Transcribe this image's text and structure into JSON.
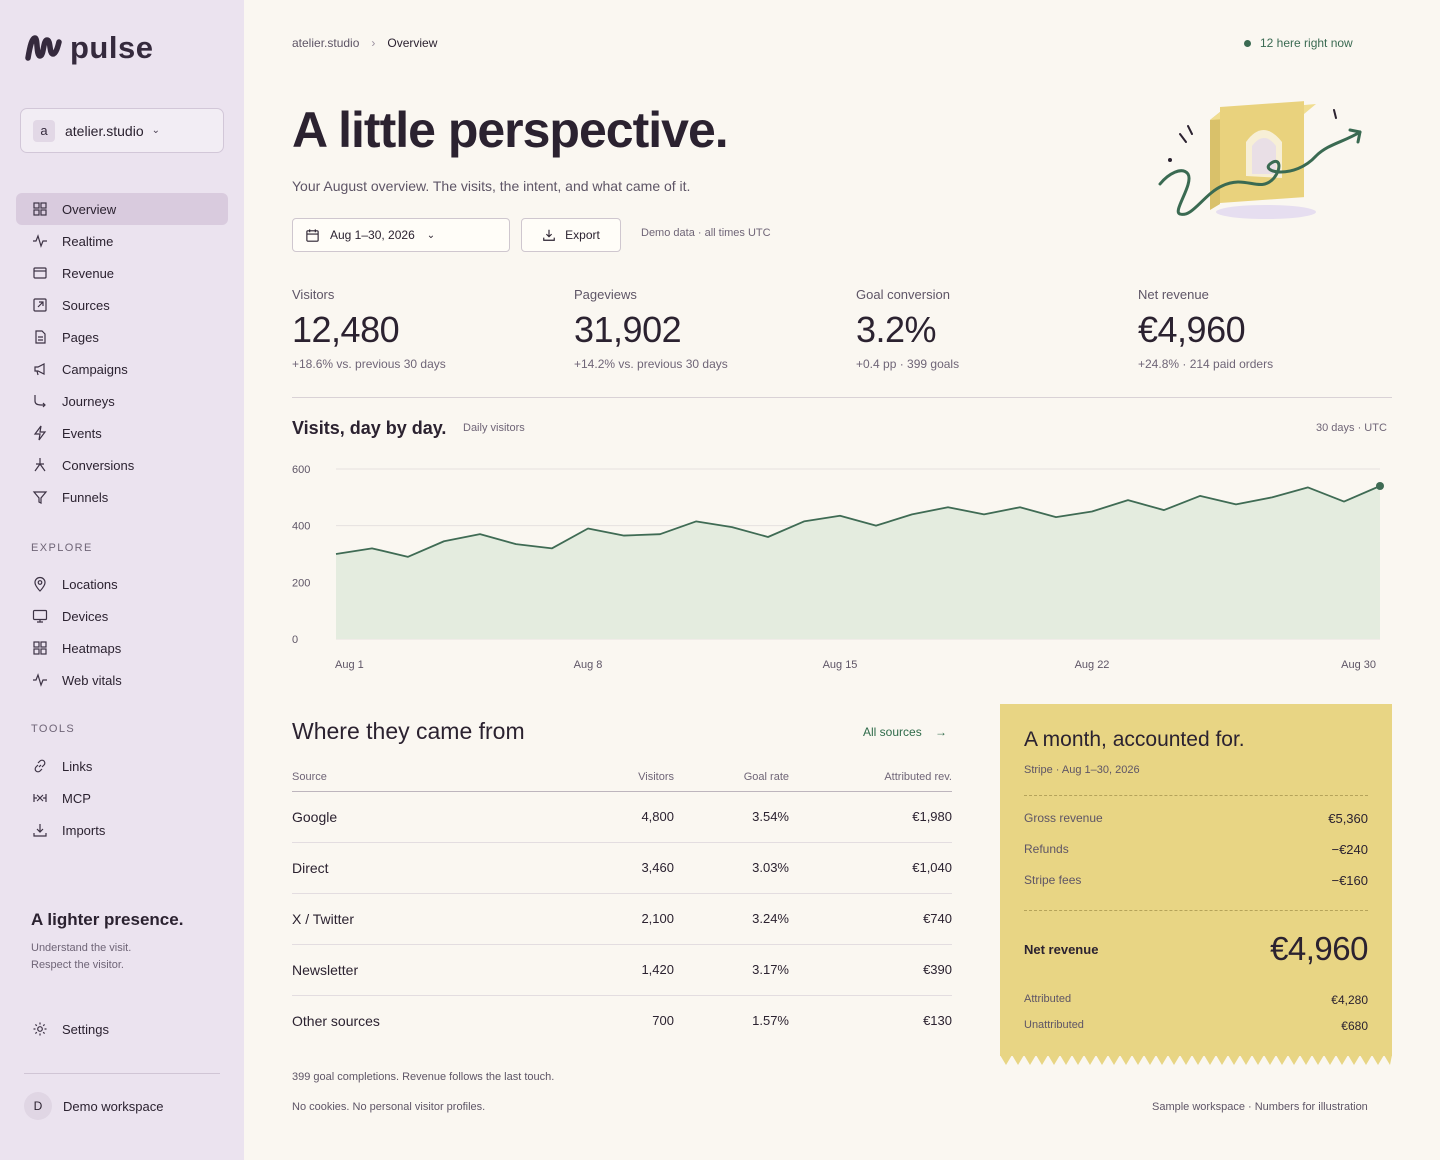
{
  "app": {
    "name": "pulse"
  },
  "workspace": {
    "initial": "a",
    "name": "atelier.studio"
  },
  "nav": {
    "main": [
      {
        "label": "Overview",
        "icon": "grid-icon",
        "active": true
      },
      {
        "label": "Realtime",
        "icon": "pulse-icon"
      },
      {
        "label": "Revenue",
        "icon": "card-icon"
      },
      {
        "label": "Sources",
        "icon": "external-link-icon"
      },
      {
        "label": "Pages",
        "icon": "page-icon"
      },
      {
        "label": "Campaigns",
        "icon": "megaphone-icon"
      },
      {
        "label": "Journeys",
        "icon": "route-icon"
      },
      {
        "label": "Events",
        "icon": "bolt-icon"
      },
      {
        "label": "Conversions",
        "icon": "conversion-icon"
      },
      {
        "label": "Funnels",
        "icon": "funnel-icon"
      }
    ],
    "explore_title": "EXPLORE",
    "explore": [
      {
        "label": "Locations",
        "icon": "pin-icon"
      },
      {
        "label": "Devices",
        "icon": "monitor-icon"
      },
      {
        "label": "Heatmaps",
        "icon": "heatmap-icon"
      },
      {
        "label": "Web vitals",
        "icon": "vitals-icon"
      }
    ],
    "tools_title": "TOOLS",
    "tools": [
      {
        "label": "Links",
        "icon": "link-icon"
      },
      {
        "label": "MCP",
        "icon": "mcp-icon"
      },
      {
        "label": "Imports",
        "icon": "download-icon"
      }
    ],
    "settings": "Settings"
  },
  "promo": {
    "title": "A lighter presence.",
    "line1": "Understand the visit.",
    "line2": "Respect the visitor."
  },
  "user": {
    "initial": "D",
    "name": "Demo workspace"
  },
  "breadcrumb": {
    "root": "atelier.studio",
    "sep": "›",
    "current": "Overview"
  },
  "live": "12 here right now",
  "hero": {
    "title": "A little perspective.",
    "subtitle": "Your August overview. The visits, the intent, and what came of it."
  },
  "controls": {
    "date_range": "Aug 1–30, 2026",
    "export": "Export",
    "note": "Demo data · all times UTC"
  },
  "kpis": [
    {
      "label": "Visitors",
      "value": "12,480",
      "delta": "+18.6% vs. previous 30 days"
    },
    {
      "label": "Pageviews",
      "value": "31,902",
      "delta": "+14.2% vs. previous 30 days"
    },
    {
      "label": "Goal conversion",
      "value": "3.2%",
      "delta": "+0.4 pp · 399 goals"
    },
    {
      "label": "Net revenue",
      "value": "€4,960",
      "delta": "+24.8% · 214 paid orders"
    }
  ],
  "chart_title": "Visits, day by day.",
  "chart_subtitle": "Daily visitors",
  "chart_range": "30 days · UTC",
  "chart_data": {
    "type": "area",
    "ylim": [
      0,
      600
    ],
    "yticks": [
      "0",
      "200",
      "400",
      "600"
    ],
    "xticks": [
      {
        "day": 1,
        "label": "Aug 1"
      },
      {
        "day": 8,
        "label": "Aug 8"
      },
      {
        "day": 15,
        "label": "Aug 15"
      },
      {
        "day": 22,
        "label": "Aug 22"
      },
      {
        "day": 30,
        "label": "Aug 30"
      }
    ],
    "x": [
      1,
      2,
      3,
      4,
      5,
      6,
      7,
      8,
      9,
      10,
      11,
      12,
      13,
      14,
      15,
      16,
      17,
      18,
      19,
      20,
      21,
      22,
      23,
      24,
      25,
      26,
      27,
      28,
      29,
      30
    ],
    "values": [
      300,
      320,
      290,
      345,
      370,
      335,
      320,
      390,
      365,
      370,
      415,
      395,
      360,
      415,
      435,
      400,
      440,
      465,
      440,
      465,
      430,
      450,
      490,
      455,
      505,
      475,
      500,
      535,
      485,
      540
    ],
    "color": "#3f6b54",
    "fill": "#e4ecdf",
    "grid": true
  },
  "sources": {
    "title": "Where they came from",
    "link": "All sources",
    "columns": [
      "Source",
      "Visitors",
      "Goal rate",
      "Attributed rev."
    ],
    "rows": [
      [
        "Google",
        "4,800",
        "3.54%",
        "€1,980"
      ],
      [
        "Direct",
        "3,460",
        "3.03%",
        "€1,040"
      ],
      [
        "X / Twitter",
        "2,100",
        "3.24%",
        "€740"
      ],
      [
        "Newsletter",
        "1,420",
        "3.17%",
        "€390"
      ],
      [
        "Other sources",
        "700",
        "1.57%",
        "€130"
      ]
    ],
    "foot1": "399 goal completions. Revenue follows the last touch.",
    "foot2": "No cookies. No personal visitor profiles."
  },
  "receipt": {
    "title": "A month, accounted for.",
    "subtitle": "Stripe · Aug 1–30, 2026",
    "lines": [
      {
        "label": "Gross revenue",
        "value": "€5,360"
      },
      {
        "label": "Refunds",
        "value": "−€240"
      },
      {
        "label": "Stripe fees",
        "value": "−€160"
      }
    ],
    "net_label": "Net revenue",
    "net_value": "€4,960",
    "attributed_label": "Attributed",
    "attributed_value": "€4,280",
    "unattributed_label": "Unattributed",
    "unattributed_value": "€680",
    "color": "#e8d584"
  },
  "footer": {
    "right": "Sample workspace · Numbers for illustration"
  }
}
